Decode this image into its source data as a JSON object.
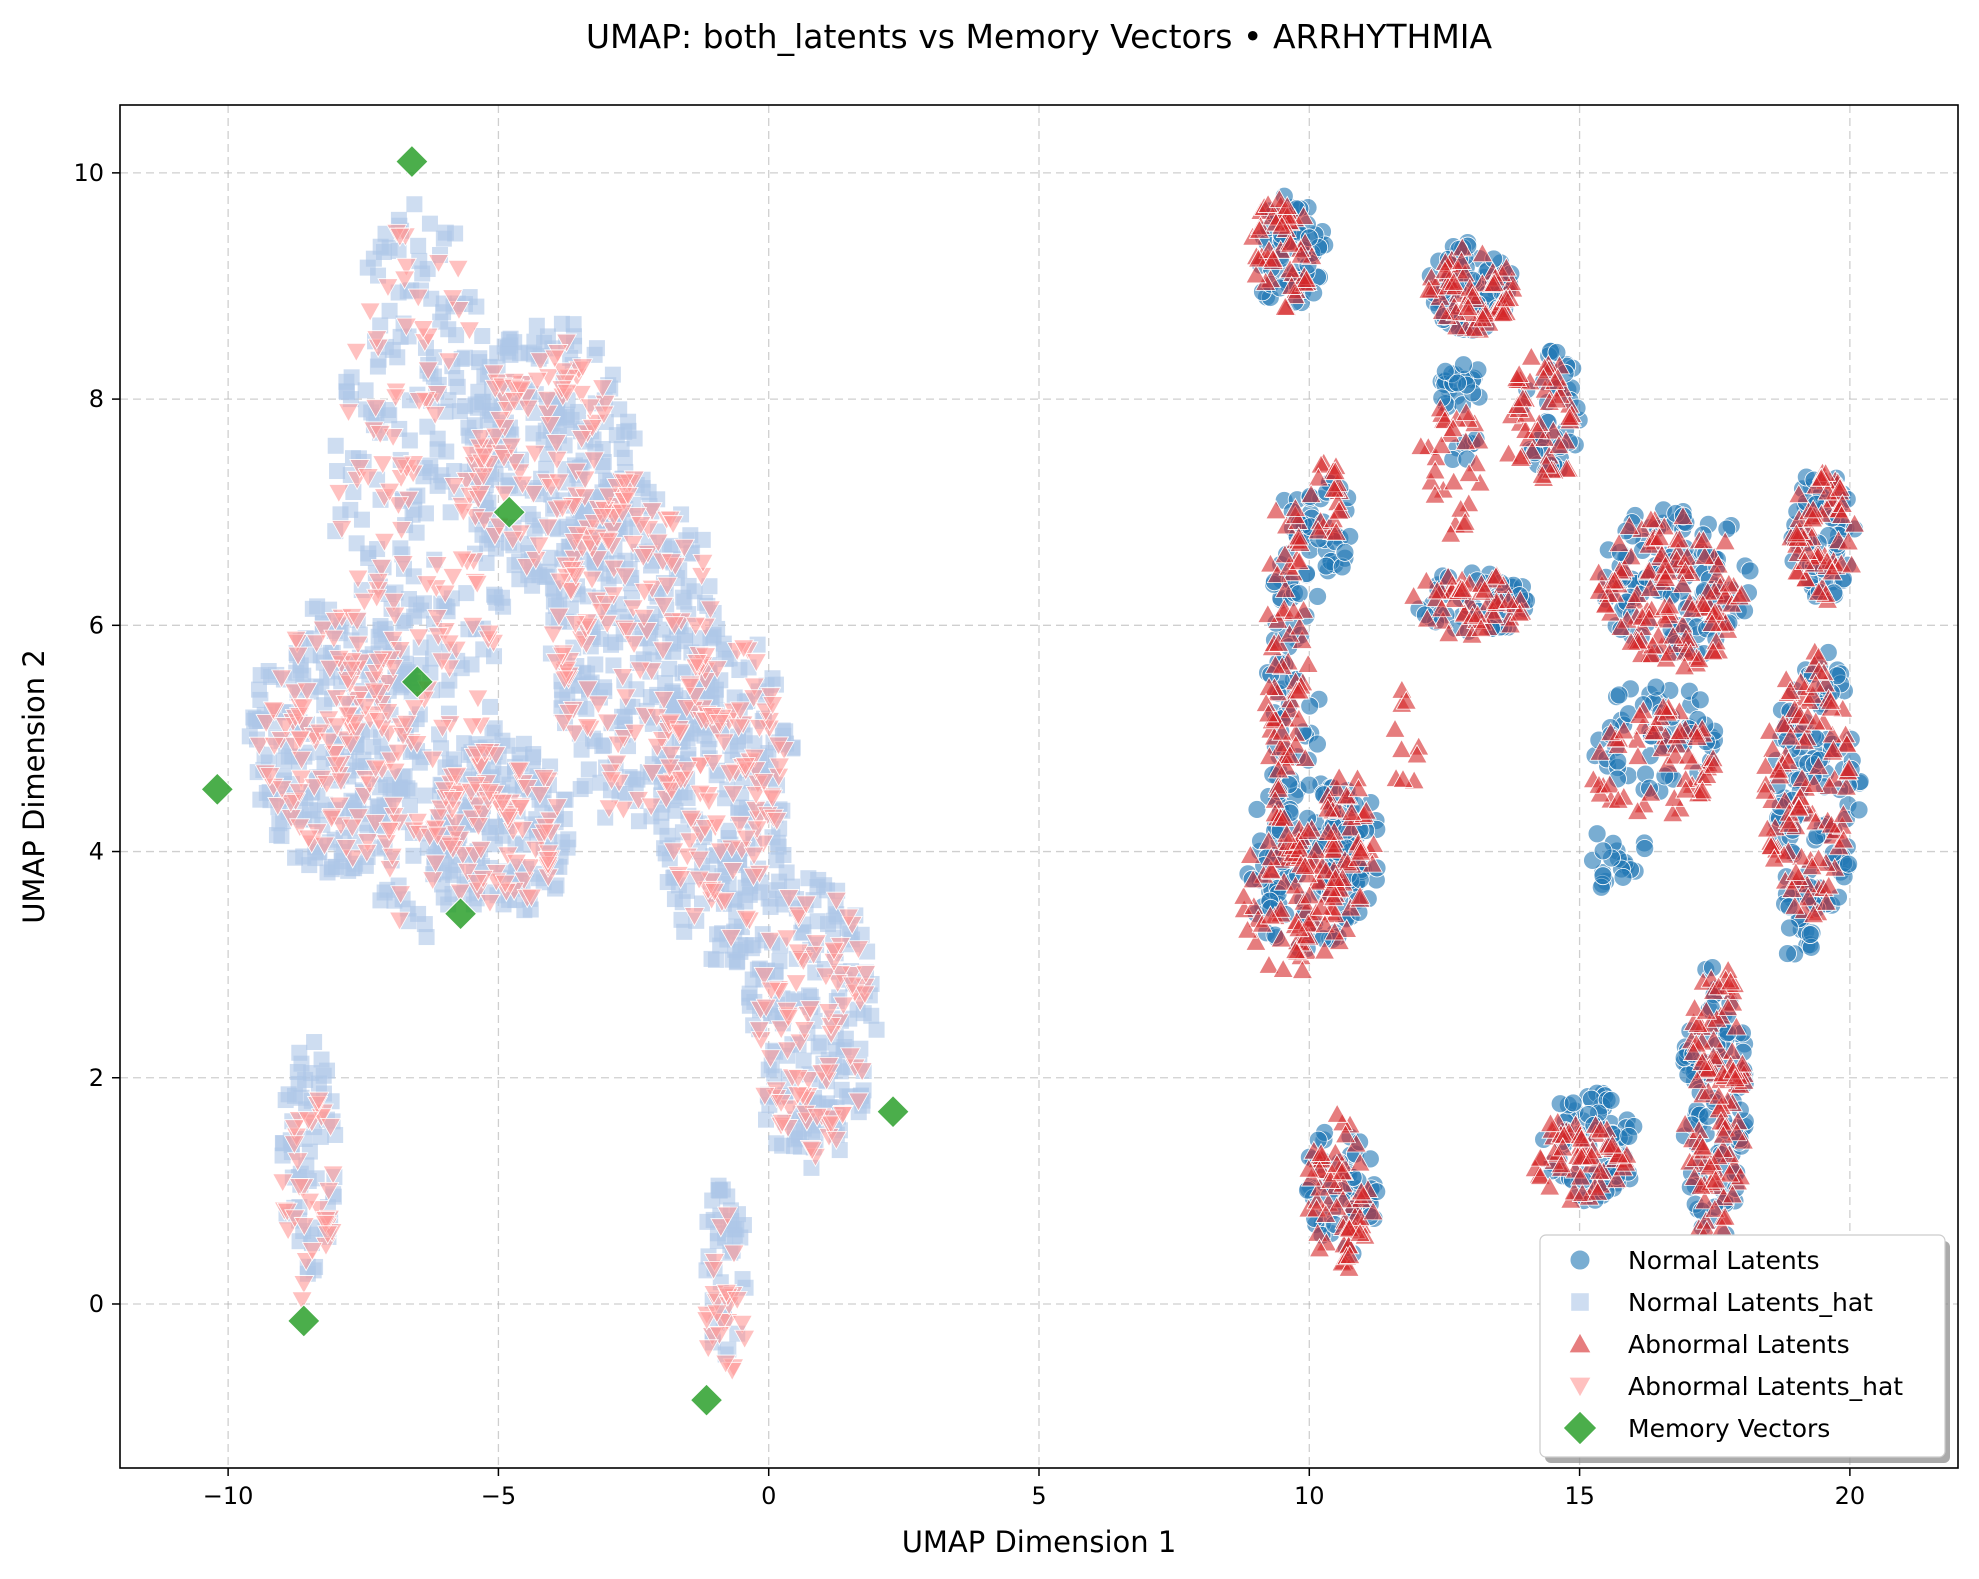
{
  "chart_data": {
    "type": "scatter",
    "title": "UMAP: both_latents vs Memory Vectors • ARRHYTHMIA",
    "xlabel": "UMAP Dimension 1",
    "ylabel": "UMAP Dimension 2",
    "xlim": [
      -12,
      22
    ],
    "ylim": [
      -1.45,
      10.6
    ],
    "xticks": [
      -10,
      -5,
      0,
      5,
      10,
      15,
      20
    ],
    "xtick_labels": [
      "−10",
      "−5",
      "0",
      "5",
      "10",
      "15",
      "20"
    ],
    "yticks": [
      0,
      2,
      4,
      6,
      8,
      10
    ],
    "ytick_labels": [
      "0",
      "2",
      "4",
      "6",
      "8",
      "10"
    ],
    "grid": true,
    "legend_position": "lower-right",
    "series": [
      {
        "name": "Normal Latents",
        "marker": "circle",
        "color": "#1f77b4",
        "regions": [
          {
            "cx": 9.6,
            "cy": 9.3,
            "rx": 0.7,
            "ry": 0.5,
            "n": 60
          },
          {
            "cx": 9.7,
            "cy": 5.5,
            "rx": 0.5,
            "ry": 1.8,
            "n": 80
          },
          {
            "cx": 9.9,
            "cy": 3.9,
            "rx": 1.1,
            "ry": 0.8,
            "n": 90
          },
          {
            "cx": 10.8,
            "cy": 4.0,
            "rx": 0.5,
            "ry": 0.6,
            "n": 40
          },
          {
            "cx": 10.3,
            "cy": 6.9,
            "rx": 0.5,
            "ry": 0.5,
            "n": 30
          },
          {
            "cx": 10.6,
            "cy": 1.0,
            "rx": 0.7,
            "ry": 0.6,
            "n": 50
          },
          {
            "cx": 13.0,
            "cy": 9.0,
            "rx": 0.8,
            "ry": 0.4,
            "n": 70
          },
          {
            "cx": 12.8,
            "cy": 8.0,
            "rx": 0.4,
            "ry": 0.6,
            "n": 30
          },
          {
            "cx": 13.0,
            "cy": 6.2,
            "rx": 1.1,
            "ry": 0.3,
            "n": 50
          },
          {
            "cx": 14.5,
            "cy": 7.9,
            "rx": 0.6,
            "ry": 0.6,
            "n": 40
          },
          {
            "cx": 16.8,
            "cy": 6.4,
            "rx": 1.4,
            "ry": 0.7,
            "n": 120
          },
          {
            "cx": 16.4,
            "cy": 5.0,
            "rx": 1.2,
            "ry": 0.5,
            "n": 60
          },
          {
            "cx": 15.5,
            "cy": 3.9,
            "rx": 0.9,
            "ry": 0.3,
            "n": 20
          },
          {
            "cx": 17.5,
            "cy": 1.8,
            "rx": 0.6,
            "ry": 1.3,
            "n": 100
          },
          {
            "cx": 15.2,
            "cy": 1.4,
            "rx": 0.9,
            "ry": 0.5,
            "n": 70
          },
          {
            "cx": 19.5,
            "cy": 6.8,
            "rx": 0.6,
            "ry": 0.6,
            "n": 60
          },
          {
            "cx": 19.4,
            "cy": 4.6,
            "rx": 0.8,
            "ry": 1.2,
            "n": 110
          },
          {
            "cx": 19.1,
            "cy": 3.4,
            "rx": 0.4,
            "ry": 0.4,
            "n": 20
          }
        ]
      },
      {
        "name": "Normal Latents_hat",
        "marker": "square",
        "color": "#aec7e8",
        "regions": [
          {
            "cx": -6.5,
            "cy": 6.5,
            "rx": 1.6,
            "ry": 3.3,
            "n": 280
          },
          {
            "cx": -8.0,
            "cy": 5.0,
            "rx": 1.6,
            "ry": 1.2,
            "n": 220
          },
          {
            "cx": -4.0,
            "cy": 7.5,
            "rx": 1.6,
            "ry": 1.2,
            "n": 220
          },
          {
            "cx": -2.5,
            "cy": 5.8,
            "rx": 1.6,
            "ry": 1.6,
            "n": 240
          },
          {
            "cx": -0.8,
            "cy": 4.5,
            "rx": 1.3,
            "ry": 1.5,
            "n": 220
          },
          {
            "cx": 0.8,
            "cy": 2.5,
            "rx": 1.2,
            "ry": 1.3,
            "n": 170
          },
          {
            "cx": -5.0,
            "cy": 4.2,
            "rx": 1.4,
            "ry": 0.8,
            "n": 150
          },
          {
            "cx": -8.5,
            "cy": 1.3,
            "rx": 0.5,
            "ry": 1.1,
            "n": 60
          },
          {
            "cx": -0.8,
            "cy": 0.3,
            "rx": 0.4,
            "ry": 0.8,
            "n": 40
          }
        ]
      },
      {
        "name": "Abnormal Latents",
        "marker": "triangle-up",
        "color": "#d62728",
        "regions": [
          {
            "cx": 9.5,
            "cy": 9.3,
            "rx": 0.6,
            "ry": 0.5,
            "n": 50
          },
          {
            "cx": 9.6,
            "cy": 5.5,
            "rx": 0.4,
            "ry": 1.8,
            "n": 80
          },
          {
            "cx": 9.8,
            "cy": 3.6,
            "rx": 1.1,
            "ry": 0.7,
            "n": 80
          },
          {
            "cx": 10.7,
            "cy": 4.1,
            "rx": 0.5,
            "ry": 0.6,
            "n": 40
          },
          {
            "cx": 10.3,
            "cy": 7.1,
            "rx": 0.3,
            "ry": 0.4,
            "n": 20
          },
          {
            "cx": 10.6,
            "cy": 1.0,
            "rx": 0.7,
            "ry": 0.7,
            "n": 60
          },
          {
            "cx": 13.0,
            "cy": 9.0,
            "rx": 0.8,
            "ry": 0.4,
            "n": 60
          },
          {
            "cx": 12.6,
            "cy": 7.4,
            "rx": 0.6,
            "ry": 0.6,
            "n": 30
          },
          {
            "cx": 13.0,
            "cy": 6.2,
            "rx": 1.1,
            "ry": 0.3,
            "n": 50
          },
          {
            "cx": 14.3,
            "cy": 7.8,
            "rx": 0.7,
            "ry": 0.6,
            "n": 50
          },
          {
            "cx": 16.7,
            "cy": 6.3,
            "rx": 1.4,
            "ry": 0.7,
            "n": 120
          },
          {
            "cx": 16.3,
            "cy": 4.8,
            "rx": 1.2,
            "ry": 0.5,
            "n": 60
          },
          {
            "cx": 17.5,
            "cy": 1.8,
            "rx": 0.6,
            "ry": 1.3,
            "n": 100
          },
          {
            "cx": 15.0,
            "cy": 1.3,
            "rx": 0.9,
            "ry": 0.4,
            "n": 60
          },
          {
            "cx": 19.5,
            "cy": 6.8,
            "rx": 0.6,
            "ry": 0.6,
            "n": 60
          },
          {
            "cx": 19.2,
            "cy": 4.6,
            "rx": 0.8,
            "ry": 1.2,
            "n": 110
          },
          {
            "cx": 11.8,
            "cy": 5.0,
            "rx": 0.3,
            "ry": 0.5,
            "n": 10
          }
        ]
      },
      {
        "name": "Abnormal Latents_hat",
        "marker": "triangle-down",
        "color": "#ff9896",
        "regions": [
          {
            "cx": -6.5,
            "cy": 6.5,
            "rx": 1.5,
            "ry": 3.2,
            "n": 140
          },
          {
            "cx": -8.0,
            "cy": 5.0,
            "rx": 1.5,
            "ry": 1.1,
            "n": 110
          },
          {
            "cx": -4.0,
            "cy": 7.5,
            "rx": 1.5,
            "ry": 1.1,
            "n": 110
          },
          {
            "cx": -2.5,
            "cy": 5.8,
            "rx": 1.5,
            "ry": 1.5,
            "n": 120
          },
          {
            "cx": -0.8,
            "cy": 4.5,
            "rx": 1.2,
            "ry": 1.4,
            "n": 110
          },
          {
            "cx": 0.8,
            "cy": 2.5,
            "rx": 1.1,
            "ry": 1.2,
            "n": 90
          },
          {
            "cx": -5.0,
            "cy": 4.2,
            "rx": 1.3,
            "ry": 0.7,
            "n": 80
          },
          {
            "cx": -8.5,
            "cy": 1.0,
            "rx": 0.5,
            "ry": 1.0,
            "n": 35
          },
          {
            "cx": -0.8,
            "cy": 0.0,
            "rx": 0.4,
            "ry": 0.8,
            "n": 25
          }
        ]
      },
      {
        "name": "Memory Vectors",
        "marker": "diamond",
        "color": "#2ca02c",
        "points": [
          {
            "x": -6.6,
            "y": 10.1
          },
          {
            "x": -4.8,
            "y": 7.0
          },
          {
            "x": -6.5,
            "y": 5.5
          },
          {
            "x": -10.2,
            "y": 4.55
          },
          {
            "x": -5.7,
            "y": 3.45
          },
          {
            "x": 2.3,
            "y": 1.7
          },
          {
            "x": -8.6,
            "y": -0.15
          },
          {
            "x": -1.15,
            "y": -0.85
          }
        ]
      }
    ]
  }
}
